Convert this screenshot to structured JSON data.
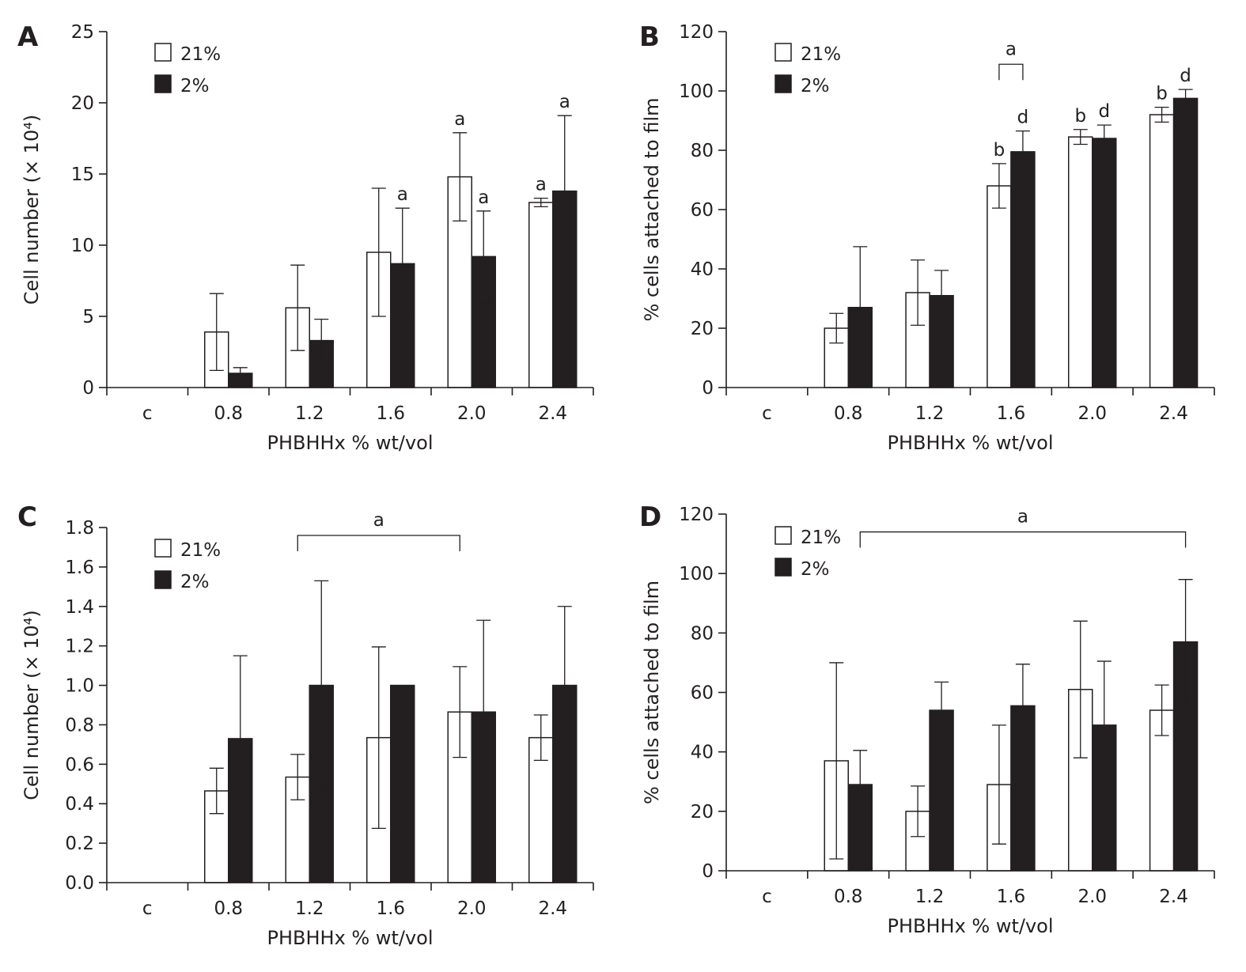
{
  "chart_data": [
    {
      "panel": "A",
      "type": "bar",
      "title": "",
      "xlabel": "PHBHHx % wt/vol",
      "ylabel": "Cell number (× 10⁴)",
      "categories": [
        "c",
        "0.8",
        "1.2",
        "1.6",
        "2.0",
        "2.4"
      ],
      "ylim": [
        0,
        25
      ],
      "yticks": [
        "0",
        "5",
        "10",
        "15",
        "20",
        "25"
      ],
      "legend": {
        "position": "top-left",
        "entries": [
          "21%",
          "2%"
        ]
      },
      "series": [
        {
          "name": "21%",
          "fill": "#ffffff",
          "values": [
            0,
            3.9,
            5.6,
            9.5,
            14.8,
            13.0
          ],
          "errors": [
            0,
            2.7,
            3.0,
            4.5,
            3.1,
            0.3
          ]
        },
        {
          "name": "2%",
          "fill": "#231f20",
          "values": [
            0,
            1.0,
            3.3,
            8.7,
            9.2,
            13.8
          ],
          "errors": [
            0,
            0.4,
            1.5,
            3.9,
            3.2,
            5.3
          ]
        }
      ],
      "significance": [
        {
          "series": 1,
          "category": 3,
          "label": "a"
        },
        {
          "series": 0,
          "category": 4,
          "label": "a"
        },
        {
          "series": 1,
          "category": 4,
          "label": "a"
        },
        {
          "series": 0,
          "category": 5,
          "label": "a"
        },
        {
          "series": 1,
          "category": 5,
          "label": "a"
        }
      ],
      "brackets": []
    },
    {
      "panel": "B",
      "type": "bar",
      "title": "",
      "xlabel": "PHBHHx % wt/vol",
      "ylabel": "% cells attached to film",
      "categories": [
        "c",
        "0.8",
        "1.2",
        "1.6",
        "2.0",
        "2.4"
      ],
      "ylim": [
        0,
        120
      ],
      "yticks": [
        "0",
        "20",
        "40",
        "60",
        "80",
        "100",
        "120"
      ],
      "legend": {
        "position": "top-left",
        "entries": [
          "21%",
          "2%"
        ]
      },
      "series": [
        {
          "name": "21%",
          "fill": "#ffffff",
          "values": [
            0,
            20,
            32,
            68,
            84.5,
            92
          ],
          "errors": [
            0,
            5,
            11,
            7.5,
            2.5,
            2.5
          ]
        },
        {
          "name": "2%",
          "fill": "#231f20",
          "values": [
            0,
            27,
            31,
            79.5,
            84,
            97.5
          ],
          "errors": [
            0,
            20.5,
            8.5,
            7,
            4.5,
            3
          ]
        }
      ],
      "significance": [
        {
          "series": 0,
          "category": 3,
          "label": "b"
        },
        {
          "series": 1,
          "category": 3,
          "label": "d"
        },
        {
          "series": 0,
          "category": 4,
          "label": "b"
        },
        {
          "series": 1,
          "category": 4,
          "label": "d"
        },
        {
          "series": 0,
          "category": 5,
          "label": "b"
        },
        {
          "series": 1,
          "category": 5,
          "label": "d"
        }
      ],
      "brackets": [
        {
          "from": {
            "category": 3,
            "series": 0
          },
          "to": {
            "category": 3,
            "series": 1
          },
          "y": 109,
          "label": "a"
        }
      ]
    },
    {
      "panel": "C",
      "type": "bar",
      "title": "",
      "xlabel": "PHBHHx % wt/vol",
      "ylabel": "Cell number (× 10⁴)",
      "categories": [
        "c",
        "0.8",
        "1.2",
        "1.6",
        "2.0",
        "2.4"
      ],
      "ylim": [
        0,
        1.8
      ],
      "yticks": [
        "0.0",
        "0.2",
        "0.4",
        "0.6",
        "0.8",
        "1.0",
        "1.2",
        "1.4",
        "1.6",
        "1.8"
      ],
      "legend": {
        "position": "top-left",
        "entries": [
          "21%",
          "2%"
        ]
      },
      "series": [
        {
          "name": "21%",
          "fill": "#ffffff",
          "values": [
            0,
            0.465,
            0.535,
            0.735,
            0.865,
            0.735
          ],
          "errors": [
            0,
            0.115,
            0.115,
            0.46,
            0.23,
            0.115
          ]
        },
        {
          "name": "2%",
          "fill": "#231f20",
          "values": [
            0,
            0.73,
            1.0,
            1.0,
            0.865,
            1.0
          ],
          "errors": [
            0,
            0.42,
            0.53,
            0,
            0.465,
            0.4
          ]
        }
      ],
      "significance": [],
      "brackets": [
        {
          "from": {
            "category": 2,
            "series": 0
          },
          "to": {
            "category": 4,
            "series": 0
          },
          "y": 1.76,
          "label": "a"
        }
      ]
    },
    {
      "panel": "D",
      "type": "bar",
      "title": "",
      "xlabel": "PHBHHx % wt/vol",
      "ylabel": "% cells attached to film",
      "categories": [
        "c",
        "0.8",
        "1.2",
        "1.6",
        "2.0",
        "2.4"
      ],
      "ylim": [
        0,
        120
      ],
      "yticks": [
        "0",
        "20",
        "40",
        "60",
        "80",
        "100",
        "120"
      ],
      "legend": {
        "position": "top-left",
        "entries": [
          "21%",
          "2%"
        ]
      },
      "series": [
        {
          "name": "21%",
          "fill": "#ffffff",
          "values": [
            0,
            37,
            20,
            29,
            61,
            54
          ],
          "errors": [
            0,
            33,
            8.5,
            20,
            23,
            8.5
          ]
        },
        {
          "name": "2%",
          "fill": "#231f20",
          "values": [
            0,
            29,
            54,
            55.5,
            49,
            77
          ],
          "errors": [
            0,
            11.5,
            9.5,
            14,
            21.5,
            21
          ]
        }
      ],
      "significance": [],
      "brackets": [
        {
          "from": {
            "category": 1,
            "series": 1
          },
          "to": {
            "category": 5,
            "series": 1
          },
          "y": 114,
          "label": "a"
        }
      ]
    }
  ]
}
